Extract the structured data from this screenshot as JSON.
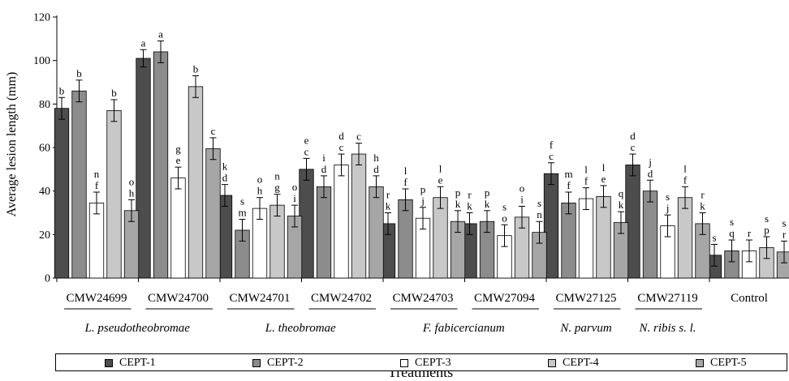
{
  "chart_data": {
    "type": "bar",
    "ylabel": "Average lesion length (mm)",
    "xlabel": "Treatments",
    "ylim": [
      0,
      120
    ],
    "yticks": [
      0,
      20,
      40,
      60,
      80,
      100,
      120
    ],
    "grid": false,
    "legend_position": "bottom",
    "categories": [
      "CMW24699",
      "CMW24700",
      "CMW24701",
      "CMW24702",
      "CMW24703",
      "CMW27094",
      "CMW27125",
      "CMW27119",
      "Control"
    ],
    "groups": [
      {
        "label": "L. pseudotheobromae",
        "categories": [
          "CMW24699",
          "CMW24700"
        ]
      },
      {
        "label": "L. theobromae",
        "categories": [
          "CMW24701",
          "CMW24702"
        ]
      },
      {
        "label": "F. fabicercianum",
        "categories": [
          "CMW24703",
          "CMW27094"
        ]
      },
      {
        "label": "N. parvum",
        "categories": [
          "CMW27125"
        ]
      },
      {
        "label": "N. ribis s. l.",
        "categories": [
          "CMW27119"
        ]
      }
    ],
    "series": [
      {
        "name": "CEPT-1",
        "color": "#4d4d4d",
        "values": [
          78,
          101,
          38,
          50,
          25,
          25,
          48,
          52,
          10.5
        ],
        "errors": [
          5,
          4,
          5,
          5,
          5,
          5,
          5,
          5,
          5
        ],
        "labels": [
          [
            "b"
          ],
          [
            "a"
          ],
          [
            "k",
            "d"
          ],
          [
            "e",
            "c"
          ],
          [
            "r",
            "k"
          ],
          [
            "r",
            "k"
          ],
          [
            "f",
            "c"
          ],
          [
            "d",
            "c"
          ],
          [
            "s"
          ]
        ]
      },
      {
        "name": "CEPT-2",
        "color": "#8c8c8c",
        "values": [
          86,
          104,
          22,
          42,
          36,
          26,
          34.5,
          40,
          12.5
        ],
        "errors": [
          5,
          5,
          5,
          5,
          5,
          5,
          5,
          5,
          5
        ],
        "labels": [
          [
            "b"
          ],
          [
            "a"
          ],
          [
            "s",
            "m"
          ],
          [
            "i",
            "d"
          ],
          [
            "l",
            "f"
          ],
          [
            "p",
            "k"
          ],
          [
            "m",
            "f"
          ],
          [
            "j",
            "d"
          ],
          [
            "s",
            "q"
          ]
        ]
      },
      {
        "name": "CEPT-3",
        "color": "#ffffff",
        "values": [
          34.5,
          46,
          32,
          52,
          27.5,
          19.5,
          36.5,
          24,
          12.5
        ],
        "errors": [
          5,
          5,
          5,
          5,
          5,
          5,
          5,
          5,
          5
        ],
        "labels": [
          [
            "n",
            "f"
          ],
          [
            "g",
            "e"
          ],
          [
            "o",
            "h"
          ],
          [
            "d",
            "c"
          ],
          [
            "p",
            "j"
          ],
          [
            "s",
            "o"
          ],
          [
            "l",
            "f"
          ],
          [
            "s",
            "j"
          ],
          [
            "r"
          ]
        ]
      },
      {
        "name": "CEPT-4",
        "color": "#c8c8c8",
        "values": [
          77,
          88,
          33.5,
          57,
          37,
          28,
          37.5,
          37,
          14
        ],
        "errors": [
          5,
          5,
          5,
          5,
          5,
          5,
          5,
          5,
          5
        ],
        "labels": [
          [
            "b"
          ],
          [
            "b"
          ],
          [
            "n",
            "g"
          ],
          [
            "c"
          ],
          [
            "l",
            "e"
          ],
          [
            "o",
            "i"
          ],
          [
            "l",
            "e"
          ],
          [
            "l",
            "f"
          ],
          [
            "s",
            "p"
          ]
        ]
      },
      {
        "name": "CEPT-5",
        "color": "#a6a6a6",
        "values": [
          31,
          59.5,
          28.5,
          42,
          26,
          21,
          25.5,
          25,
          12
        ],
        "errors": [
          5,
          5,
          5,
          5,
          5,
          5,
          5,
          5,
          5
        ],
        "labels": [
          [
            "o",
            "h"
          ],
          [
            "c"
          ],
          [
            "o",
            "i"
          ],
          [
            "h",
            "d"
          ],
          [
            "p",
            "k"
          ],
          [
            "s",
            "n"
          ],
          [
            "q",
            "k"
          ],
          [
            "r",
            "k"
          ],
          [
            "s",
            "r"
          ]
        ]
      }
    ]
  }
}
